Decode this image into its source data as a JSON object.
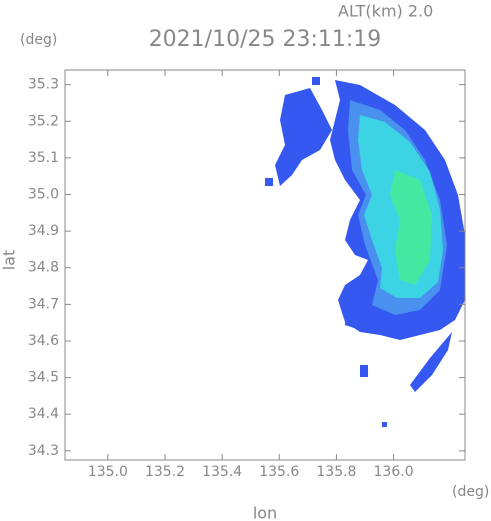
{
  "chart_data": {
    "type": "map",
    "title": "2021/10/25 23:11:19",
    "altitude": "ALT(km)  2.0",
    "x_label": "lon",
    "y_label": "lat",
    "x_unit": "(deg)",
    "y_unit": "(deg)",
    "xlim": [
      134.85,
      136.25
    ],
    "ylim": [
      34.275,
      35.34
    ],
    "xticks": [
      {
        "value": 135.0,
        "label": "135.0"
      },
      135.2,
      135.4,
      135.6,
      135.8,
      {
        "value": 136.0,
        "label": "136.0"
      }
    ],
    "yticks": [
      35.3,
      35.2,
      35.1,
      {
        "value": 35.0,
        "label": "35.0"
      },
      34.9,
      34.8,
      34.7,
      34.6,
      34.5,
      34.4,
      34.3
    ]
  }
}
